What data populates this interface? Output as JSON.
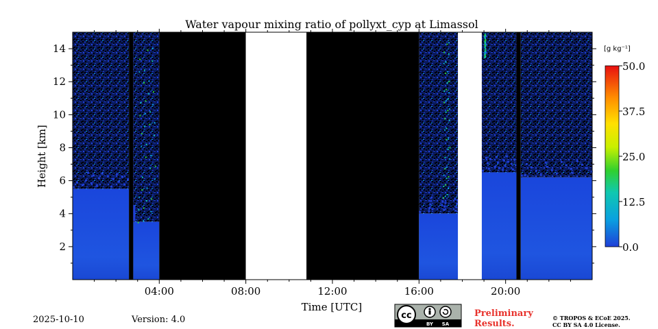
{
  "chart_data": {
    "type": "heatmap",
    "title": "Water vapour mixing ratio of pollyxt_cyp at Limassol",
    "xlabel": "Time [UTC]",
    "ylabel": "Height [km]",
    "xlim": [
      0,
      24
    ],
    "ylim": [
      0,
      15
    ],
    "x_ticks": [
      4,
      8,
      12,
      16,
      20
    ],
    "x_tick_labels": [
      "04:00",
      "08:00",
      "12:00",
      "16:00",
      "20:00"
    ],
    "y_ticks": [
      2,
      4,
      6,
      8,
      10,
      12,
      14
    ],
    "y_tick_labels": [
      "2",
      "4",
      "6",
      "8",
      "10",
      "12",
      "14"
    ],
    "colorbar": {
      "unit_label": "[g kg⁻¹]",
      "range": [
        0,
        50
      ],
      "ticks": [
        0,
        12.5,
        25,
        37.5,
        50
      ],
      "tick_labels": [
        "0.0",
        "12.5",
        "25.0",
        "37.5",
        "50.0"
      ],
      "colors": [
        "#1f3fd8",
        "#0aa0e0",
        "#10c8b0",
        "#2fd02f",
        "#c8f000",
        "#ffe000",
        "#ff9000",
        "#e81010"
      ]
    },
    "segments": [
      {
        "start": 0.0,
        "end": 2.6,
        "type": "data",
        "valid_top_km": 5.5
      },
      {
        "start": 2.6,
        "end": 2.8,
        "type": "nodata"
      },
      {
        "start": 2.8,
        "end": 4.0,
        "type": "data",
        "valid_top_km": 3.5
      },
      {
        "start": 4.0,
        "end": 8.0,
        "type": "nodata"
      },
      {
        "start": 8.0,
        "end": 10.8,
        "type": "missing"
      },
      {
        "start": 10.8,
        "end": 16.0,
        "type": "nodata"
      },
      {
        "start": 16.0,
        "end": 17.8,
        "type": "data",
        "valid_top_km": 4.0
      },
      {
        "start": 17.8,
        "end": 18.9,
        "type": "missing"
      },
      {
        "start": 18.9,
        "end": 20.5,
        "type": "data",
        "valid_top_km": 6.5
      },
      {
        "start": 20.5,
        "end": 20.7,
        "type": "nodata"
      },
      {
        "start": 20.7,
        "end": 24.0,
        "type": "data",
        "valid_top_km": 6.2
      }
    ]
  },
  "footer": {
    "date": "2025-10-10",
    "version": "Version: 4.0",
    "preliminary_line1": "Preliminary",
    "preliminary_line2": "Results.",
    "copyright_line1": "© TROPOS & ECoE 2025.",
    "copyright_line2": "CC BY SA 4.0 License.",
    "license_badge": {
      "cc": "cc",
      "by": "BY",
      "sa": "SA"
    }
  }
}
